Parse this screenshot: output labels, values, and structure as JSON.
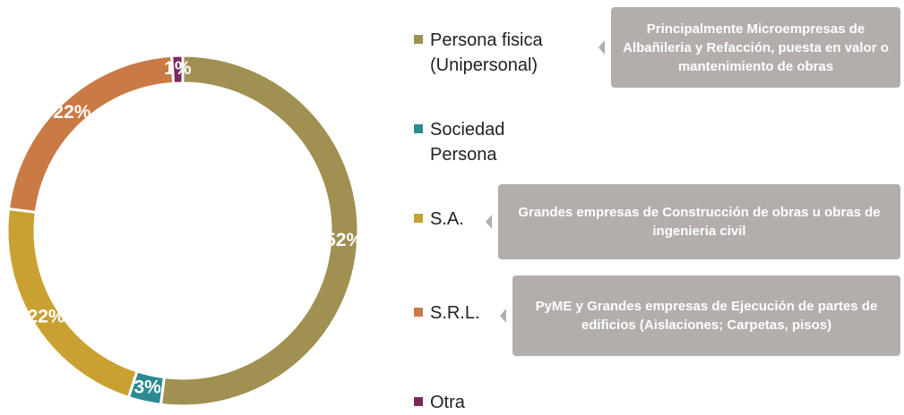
{
  "chart_data": {
    "type": "donut",
    "series": [
      {
        "name": "Persona fisica (Unipersonal)",
        "color": "#a09052",
        "value": 52,
        "value_label": "52%"
      },
      {
        "name": "Sociedad Persona",
        "color": "#2b8a92",
        "value": 3,
        "value_label": "3%"
      },
      {
        "name": "S.A.",
        "color": "#c9a133",
        "value": 22,
        "value_label": "22%"
      },
      {
        "name": "S.R.L.",
        "color": "#c97a45",
        "value": 22,
        "value_label": "22%"
      },
      {
        "name": "Otra",
        "color": "#7b2a5c",
        "value": 1,
        "value_label": "1%"
      }
    ],
    "annotations": [
      "Principalmente Microempresas de Albañileria y Refacción, puesta en valor o mantenimiento de obras",
      "Grandes empresas de Construcción de obras u obras de ingenieria civil",
      "PyME y Grandes empresas de Ejecución de partes de edificios (Aislaciones; Carpetas, pisos)"
    ]
  }
}
